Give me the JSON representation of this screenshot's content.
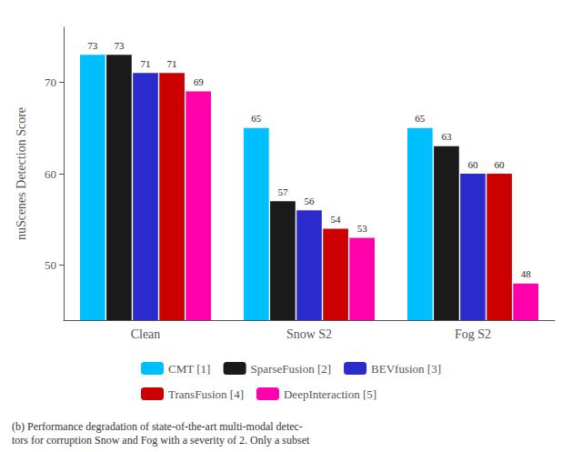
{
  "chart_data": {
    "type": "bar",
    "categories": [
      "Clean",
      "Snow S2",
      "Fog S2"
    ],
    "series": [
      {
        "name": "CMT [1]",
        "color": "#00BFFF",
        "values": [
          73,
          65,
          65
        ]
      },
      {
        "name": "SparseFusion [2]",
        "color": "#1a1a1a",
        "values": [
          73,
          57,
          63
        ]
      },
      {
        "name": "BEVfusion [3]",
        "color": "#2B2BCC",
        "values": [
          71,
          56,
          60
        ]
      },
      {
        "name": "TransFusion [4]",
        "color": "#CC0000",
        "values": [
          71,
          54,
          60
        ]
      },
      {
        "name": "DeepInteraction [5]",
        "color": "#FF00AA",
        "values": [
          69,
          53,
          48
        ]
      }
    ],
    "ylabel": "nuScenes Detection Score",
    "ylim": [
      44,
      76
    ],
    "yticks": [
      50,
      60,
      70
    ],
    "grid": false,
    "legend": "bottom",
    "data_labels": true,
    "annotations": [
      "(b) Performance degradation of state-of-the-art multi-modal detec-\ntors for corruption Snow and Fog with a severity of 2. Only a subset"
    ]
  }
}
